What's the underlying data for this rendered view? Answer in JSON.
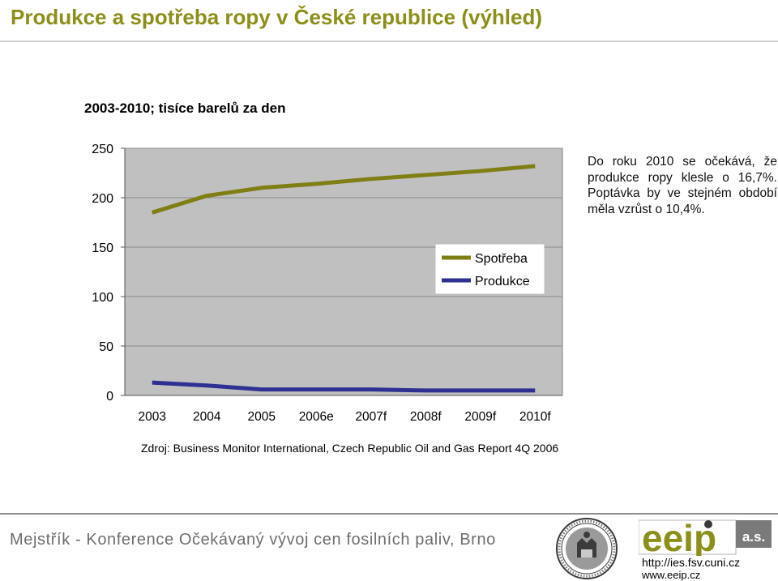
{
  "title": "Produkce a spotřeba ropy v České republice (výhled)",
  "subtitle": "2003-2010; tisíce barelů za den",
  "note": "Do roku 2010 se očekává, že produkce ropy klesle o 16,7%. Poptávka by ve stejném období měla vzrůst o 10,4%.",
  "source": "Zdroj: Business Monitor International, Czech Republic Oil and Gas Report 4Q 2006",
  "footer": {
    "text": "Mejstřík - Konference Očekávaný vývoj cen fosilních paliv, Brno",
    "url1": "http://ies.fsv.cuni.cz",
    "url2": "www.eeip.cz",
    "logo_text": "eeip",
    "logo_suffix": "a.s."
  },
  "chart_data": {
    "type": "line",
    "categories": [
      "2003",
      "2004",
      "2005",
      "2006e",
      "2007f",
      "2008f",
      "2009f",
      "2010f"
    ],
    "series": [
      {
        "name": "Spotřeba",
        "values": [
          185,
          202,
          210,
          214,
          219,
          223,
          227,
          232
        ],
        "color": "#7f7f15"
      },
      {
        "name": "Produkce",
        "values": [
          13,
          10,
          6,
          6,
          6,
          5,
          5,
          5
        ],
        "color": "#2e3192"
      }
    ],
    "ylim": [
      0,
      250
    ],
    "yticks": [
      0,
      50,
      100,
      150,
      200,
      250
    ],
    "plot_background": "#c0c0c0",
    "grid": true,
    "legend": "center-right"
  }
}
